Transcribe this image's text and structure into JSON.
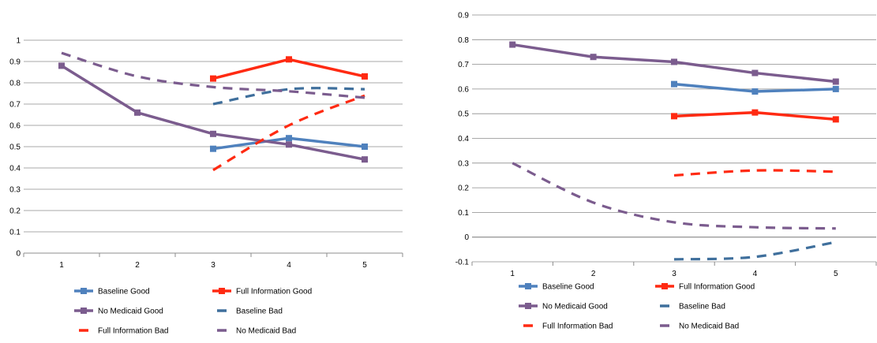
{
  "colors": {
    "baseline": "#4f81bd",
    "baseline_bad": "#3f6f9c",
    "full_information": "#ff2a12",
    "no_medicaid": "#7b5c8e"
  },
  "chart_data": [
    {
      "type": "line",
      "categories": [
        "1",
        "2",
        "3",
        "4",
        "5"
      ],
      "ylim": [
        0,
        1
      ],
      "yticks": [
        "0",
        "0.1",
        "0.2",
        "0.3",
        "0.4",
        "0.5",
        "0.6",
        "0.7",
        "0.8",
        "0.9",
        "1"
      ],
      "grid": true,
      "legend_position": "bottom",
      "series": [
        {
          "name": "Baseline Good",
          "style": "solid-marker",
          "color": "baseline",
          "values": [
            null,
            null,
            0.49,
            0.54,
            0.5
          ]
        },
        {
          "name": "Full Information Good",
          "style": "solid-marker",
          "color": "full_information",
          "values": [
            null,
            null,
            0.82,
            0.91,
            0.83
          ]
        },
        {
          "name": "No Medicaid Good",
          "style": "solid-marker",
          "color": "no_medicaid",
          "values": [
            0.88,
            0.66,
            0.56,
            0.51,
            0.44
          ]
        },
        {
          "name": "Baseline Bad",
          "style": "dashed",
          "color": "baseline_bad",
          "values": [
            null,
            null,
            0.7,
            0.77,
            0.77
          ]
        },
        {
          "name": "Full Information Bad",
          "style": "dashed",
          "color": "full_information",
          "values": [
            null,
            null,
            0.39,
            0.6,
            0.74
          ]
        },
        {
          "name": "No Medicaid Bad",
          "style": "dashed",
          "color": "no_medicaid",
          "values": [
            0.94,
            0.83,
            0.78,
            0.76,
            0.73
          ]
        }
      ]
    },
    {
      "type": "line",
      "categories": [
        "1",
        "2",
        "3",
        "4",
        "5"
      ],
      "ylim": [
        -0.1,
        0.9
      ],
      "yticks": [
        "-0.1",
        "0",
        "0.1",
        "0.2",
        "0.3",
        "0.4",
        "0.5",
        "0.6",
        "0.7",
        "0.8",
        "0.9"
      ],
      "grid": true,
      "legend_position": "bottom",
      "series": [
        {
          "name": "Baseline Good",
          "style": "solid-marker",
          "color": "baseline",
          "values": [
            null,
            null,
            0.62,
            0.59,
            0.6
          ]
        },
        {
          "name": "Full Information Good",
          "style": "solid-marker",
          "color": "full_information",
          "values": [
            null,
            null,
            0.49,
            0.505,
            0.477
          ]
        },
        {
          "name": "No Medicaid Good",
          "style": "solid-marker",
          "color": "no_medicaid",
          "values": [
            0.78,
            0.73,
            0.71,
            0.665,
            0.63
          ]
        },
        {
          "name": "Baseline Bad",
          "style": "dashed",
          "color": "baseline_bad",
          "values": [
            null,
            null,
            -0.09,
            -0.08,
            -0.02
          ]
        },
        {
          "name": "Full Information Bad",
          "style": "dashed",
          "color": "full_information",
          "values": [
            null,
            null,
            0.25,
            0.27,
            0.265
          ]
        },
        {
          "name": "No Medicaid Bad",
          "style": "dashed",
          "color": "no_medicaid",
          "values": [
            0.3,
            0.14,
            0.06,
            0.04,
            0.035
          ]
        }
      ]
    }
  ]
}
